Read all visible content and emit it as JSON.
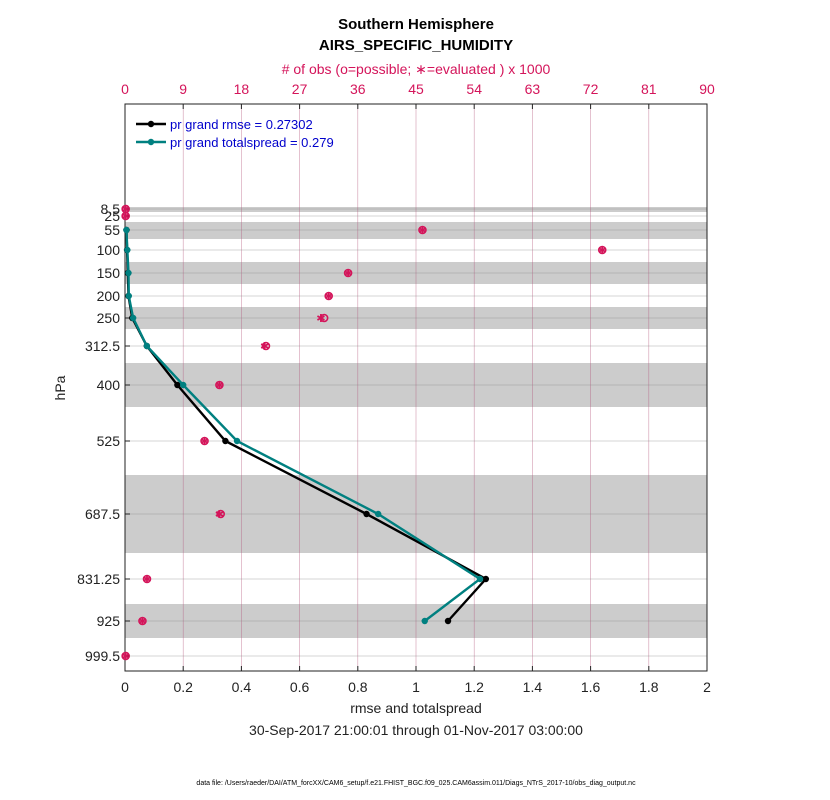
{
  "chart_data": {
    "type": "line",
    "title": "Southern Hemisphere",
    "subtitle": "AIRS_SPECIFIC_HUMIDITY",
    "top_axis_label": "# of obs (o=possible; ∗=evaluated ) x 1000",
    "top_axis_ticks": [
      "0",
      "9",
      "18",
      "27",
      "36",
      "45",
      "54",
      "63",
      "72",
      "81",
      "90"
    ],
    "top_xlim": [
      0,
      90
    ],
    "xlabel": "rmse and totalspread",
    "x_ticks": [
      "0",
      "0.2",
      "0.4",
      "0.6",
      "0.8",
      "1",
      "1.2",
      "1.4",
      "1.6",
      "1.8",
      "2"
    ],
    "xlim": [
      0,
      2
    ],
    "ylabel": "hPa",
    "y_ticks": [
      "8.5",
      "25",
      "55",
      "100",
      "150",
      "200",
      "250",
      "312.5",
      "400",
      "525",
      "687.5",
      "831.25",
      "925",
      "999.5"
    ],
    "levels": [
      8.5,
      25,
      55,
      100,
      150,
      200,
      250,
      312.5,
      400,
      525,
      687.5,
      831.25,
      925,
      999.5
    ],
    "date_range": "30-Sep-2017 21:00:01 through 01-Nov-2017 03:00:00",
    "footnote": "data file: /Users/raeder/DAI/ATM_forcXX/CAM6_setup/f.e21.FHIST_BGC.f09_025.CAM6assim.011/Diags_NTrS_2017-10/obs_diag_output.nc",
    "legend_position": "top-left",
    "series": [
      {
        "name": "pr grand rmse = 0.27302",
        "color": "#000000",
        "points": [
          {
            "level": 55,
            "value": 0.005
          },
          {
            "level": 100,
            "value": 0.007
          },
          {
            "level": 150,
            "value": 0.01
          },
          {
            "level": 200,
            "value": 0.012
          },
          {
            "level": 250,
            "value": 0.025
          },
          {
            "level": 312.5,
            "value": 0.075
          },
          {
            "level": 400,
            "value": 0.18
          },
          {
            "level": 525,
            "value": 0.345
          },
          {
            "level": 687.5,
            "value": 0.83
          },
          {
            "level": 831.25,
            "value": 1.24
          },
          {
            "level": 925,
            "value": 1.11
          }
        ]
      },
      {
        "name": "pr grand totalspread = 0.279",
        "color": "#008080",
        "points": [
          {
            "level": 55,
            "value": 0.005
          },
          {
            "level": 100,
            "value": 0.008
          },
          {
            "level": 150,
            "value": 0.012
          },
          {
            "level": 200,
            "value": 0.013
          },
          {
            "level": 250,
            "value": 0.028
          },
          {
            "level": 312.5,
            "value": 0.075
          },
          {
            "level": 400,
            "value": 0.2
          },
          {
            "level": 525,
            "value": 0.385
          },
          {
            "level": 687.5,
            "value": 0.87
          },
          {
            "level": 831.25,
            "value": 1.22
          },
          {
            "level": 925,
            "value": 1.03
          }
        ]
      }
    ],
    "obs_counts": {
      "color": "#d4145a",
      "points": [
        {
          "level": 8.5,
          "possible": 0.1,
          "evaluated": 0.1
        },
        {
          "level": 25,
          "possible": 0.1,
          "evaluated": 0.1
        },
        {
          "level": 55,
          "possible": 46,
          "evaluated": 46
        },
        {
          "level": 100,
          "possible": 73.8,
          "evaluated": 73.8
        },
        {
          "level": 150,
          "possible": 34.5,
          "evaluated": 34.5
        },
        {
          "level": 200,
          "possible": 31.5,
          "evaluated": 31.5
        },
        {
          "level": 250,
          "possible": 30.8,
          "evaluated": 30.3
        },
        {
          "level": 312.5,
          "possible": 21.8,
          "evaluated": 21.6
        },
        {
          "level": 400,
          "possible": 14.6,
          "evaluated": 14.6
        },
        {
          "level": 525,
          "possible": 12.3,
          "evaluated": 12.3
        },
        {
          "level": 687.5,
          "possible": 14.8,
          "evaluated": 14.6
        },
        {
          "level": 831.25,
          "possible": 3.4,
          "evaluated": 3.4
        },
        {
          "level": 925,
          "possible": 2.7,
          "evaluated": 2.7
        },
        {
          "level": 999.5,
          "possible": 0.1,
          "evaluated": 0.1
        }
      ]
    }
  }
}
